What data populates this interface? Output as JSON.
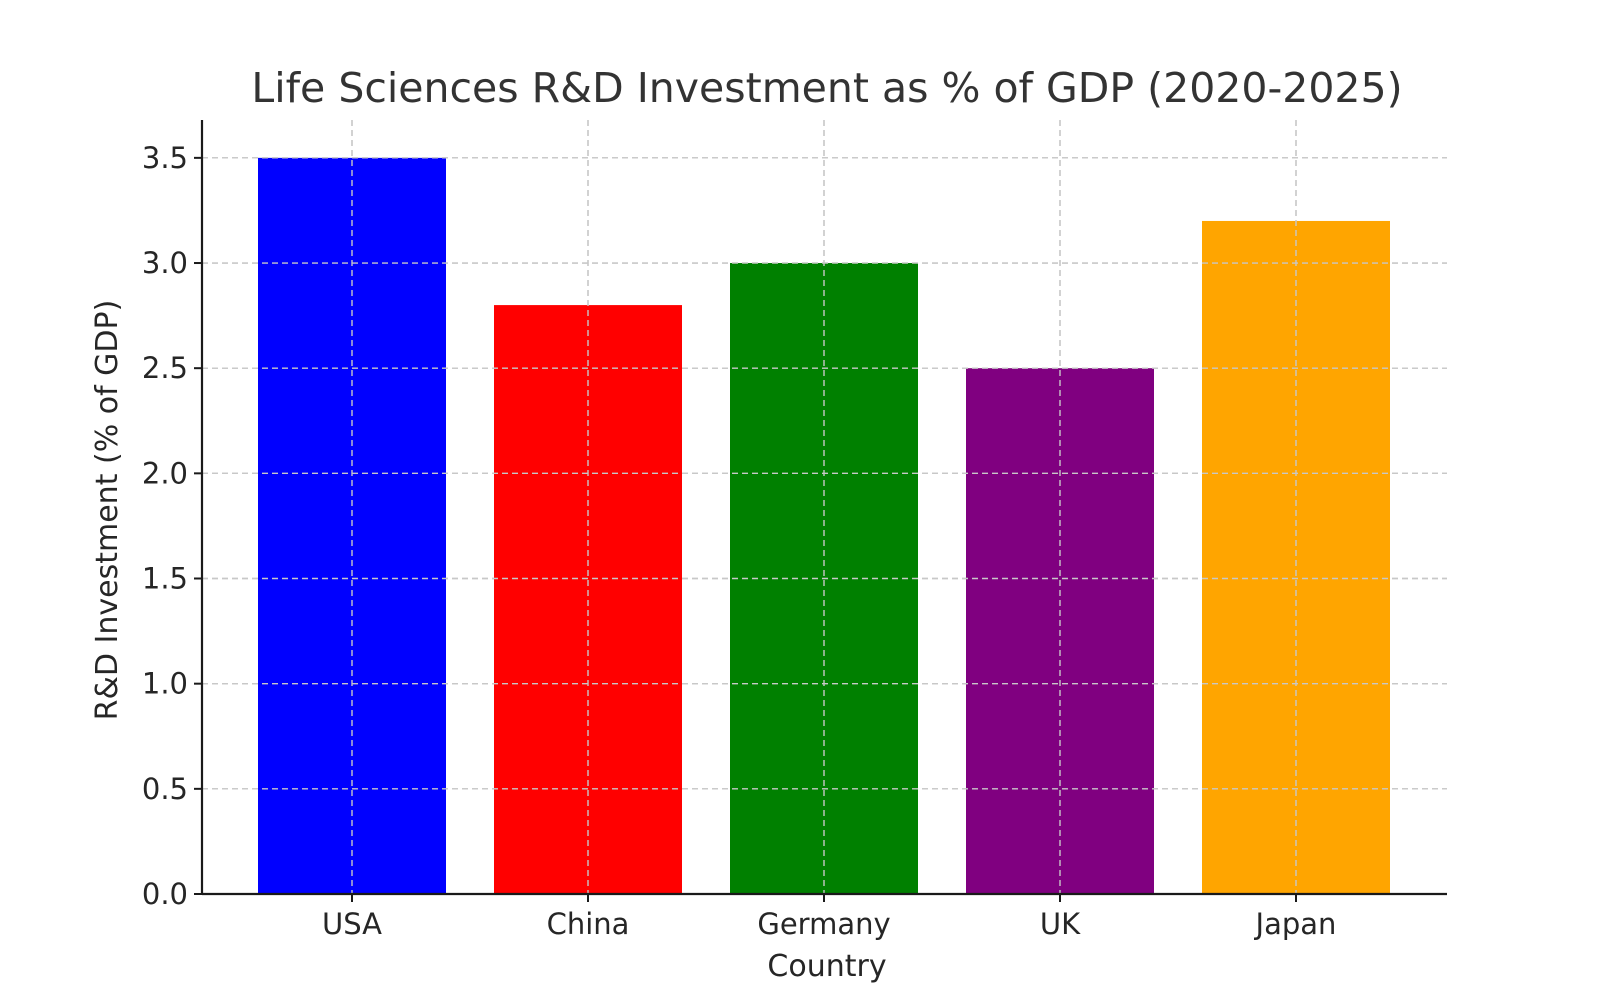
{
  "chart_data": {
    "type": "bar",
    "title": "Life Sciences R&D Investment as % of GDP (2020-2025)",
    "xlabel": "Country",
    "ylabel": "R&D Investment (% of GDP)",
    "categories": [
      "USA",
      "China",
      "Germany",
      "UK",
      "Japan"
    ],
    "values": [
      3.5,
      2.8,
      3.0,
      2.5,
      3.2
    ],
    "colors": [
      "#0000ff",
      "#ff0000",
      "#008000",
      "#800080",
      "#ffa500"
    ],
    "ylim": [
      0,
      3.68
    ],
    "yticks": [
      0.0,
      0.5,
      1.0,
      1.5,
      2.0,
      2.5,
      3.0,
      3.5
    ],
    "ytick_labels": [
      "0.0",
      "0.5",
      "1.0",
      "1.5",
      "2.0",
      "2.5",
      "3.0",
      "3.5"
    ],
    "grid": true,
    "legend": "none"
  }
}
